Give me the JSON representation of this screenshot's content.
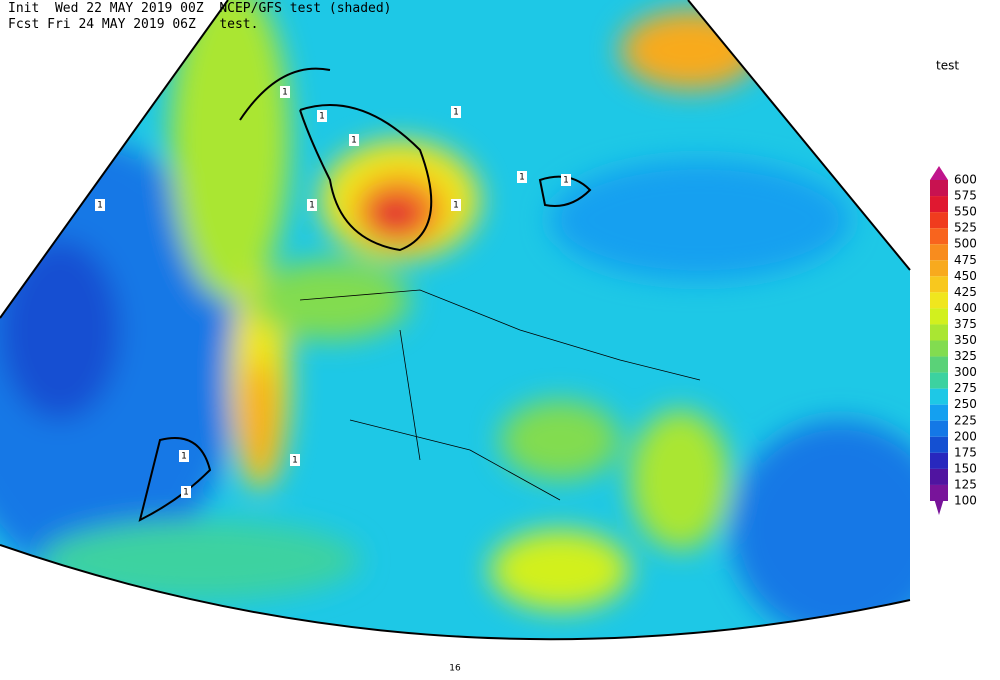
{
  "header": {
    "init_line": "Init  Wed 22 MAY 2019 00Z  NCEP/GFS test (shaded)",
    "fcst_line": "Fcst Fri 24 MAY 2019 06Z   test."
  },
  "colorbar": {
    "title": "test",
    "levels": [
      600,
      575,
      550,
      525,
      500,
      475,
      450,
      425,
      400,
      375,
      350,
      325,
      300,
      275,
      250,
      225,
      200,
      175,
      150,
      125,
      100
    ],
    "colors": [
      "#c0158c",
      "#c81250",
      "#e01830",
      "#f03c1e",
      "#f8641e",
      "#f88c1e",
      "#f8aa1e",
      "#f8c81e",
      "#f0e61e",
      "#d2f01e",
      "#aae632",
      "#82dc50",
      "#5ad278",
      "#3cd2a0",
      "#1ec8e6",
      "#14a0f0",
      "#1478e6",
      "#1450d2",
      "#2828be",
      "#5014a0",
      "#78149a"
    ]
  },
  "contour_labels": [
    "1",
    "1",
    "1",
    "1",
    "1",
    "1",
    "1",
    "1",
    "1",
    "1",
    "1",
    "1",
    "16"
  ]
}
